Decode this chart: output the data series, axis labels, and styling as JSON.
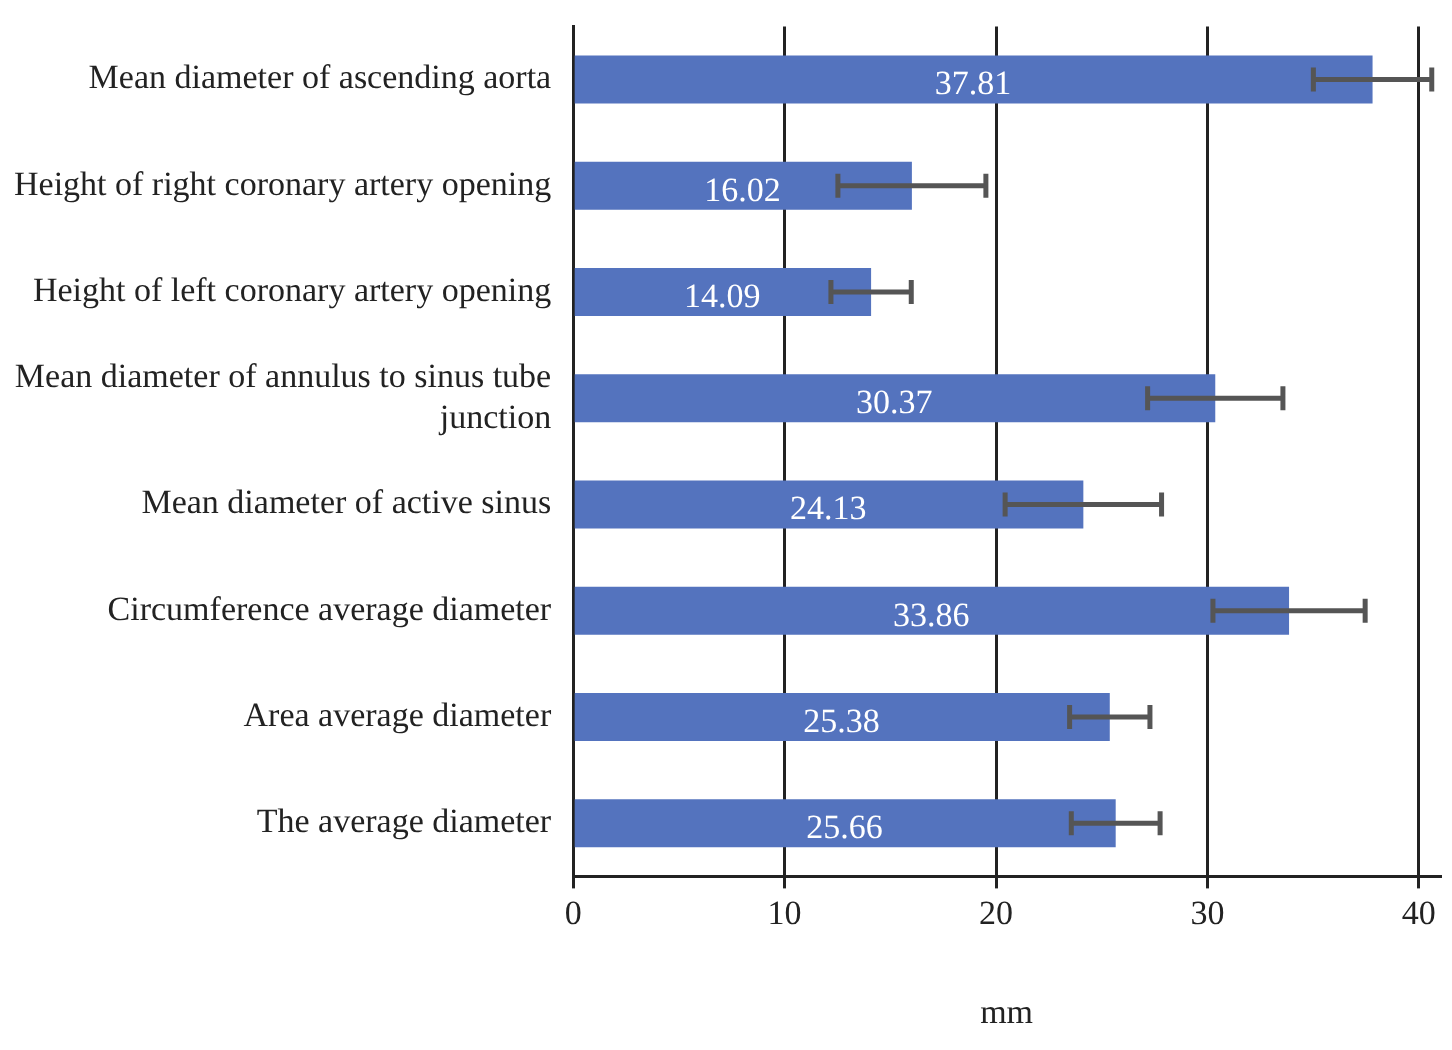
{
  "chart_data": {
    "type": "bar",
    "orientation": "horizontal",
    "xlabel": "mm",
    "categories": [
      "Mean diameter of ascending aorta",
      "Height of right coronary artery opening",
      "Height of left coronary artery opening",
      "Mean diameter of annulus to sinus tube junction",
      "Mean diameter of active sinus",
      "Circumference average diameter",
      "Area average diameter",
      "The average diameter"
    ],
    "values": [
      37.81,
      16.02,
      14.09,
      30.37,
      24.13,
      33.86,
      25.38,
      25.66
    ],
    "errors": [
      2.8,
      3.5,
      1.9,
      3.2,
      3.7,
      3.6,
      1.9,
      2.1
    ],
    "color": "#5473be",
    "data_labels": true,
    "xlim": [
      0,
      41
    ],
    "xticks": [
      0,
      10,
      20,
      30,
      40
    ],
    "grid": "x",
    "legend": false
  }
}
